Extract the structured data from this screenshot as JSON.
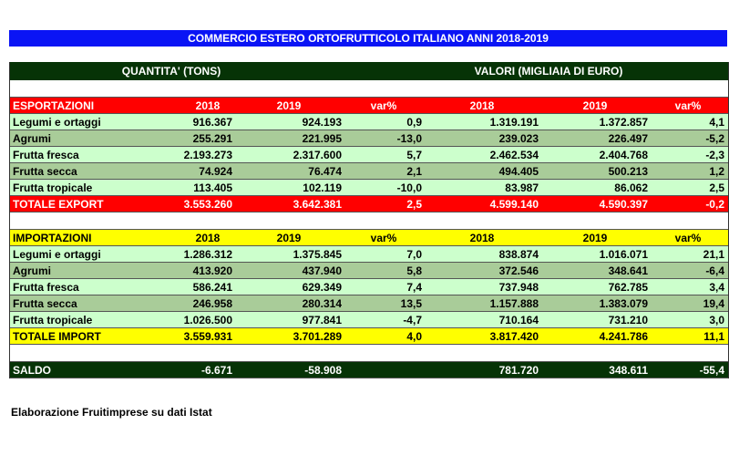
{
  "title": "COMMERCIO ESTERO ORTOFRUTTICOLO ITALIANO ANNI 2018-2019",
  "header": {
    "quantity": "QUANTITA' (TONS)",
    "values": "VALORI (MIGLIAIA DI EURO)"
  },
  "export": {
    "header": [
      "ESPORTAZIONI",
      "2018",
      "2019",
      "var%",
      "2018",
      "2019",
      "var%"
    ],
    "rows": [
      [
        "Legumi e ortaggi",
        "916.367",
        "924.193",
        "0,9",
        "1.319.191",
        "1.372.857",
        "4,1"
      ],
      [
        "Agrumi",
        "255.291",
        "221.995",
        "-13,0",
        "239.023",
        "226.497",
        "-5,2"
      ],
      [
        "Frutta fresca",
        "2.193.273",
        "2.317.600",
        "5,7",
        "2.462.534",
        "2.404.768",
        "-2,3"
      ],
      [
        "Frutta secca",
        "74.924",
        "76.474",
        "2,1",
        "494.405",
        "500.213",
        "1,2"
      ],
      [
        "Frutta tropicale",
        "113.405",
        "102.119",
        "-10,0",
        "83.987",
        "86.062",
        "2,5"
      ]
    ],
    "total": [
      "TOTALE EXPORT",
      "3.553.260",
      "3.642.381",
      "2,5",
      "4.599.140",
      "4.590.397",
      "-0,2"
    ]
  },
  "import": {
    "header": [
      "IMPORTAZIONI",
      "2018",
      "2019",
      "var%",
      "2018",
      "2019",
      "var%"
    ],
    "rows": [
      [
        "Legumi e ortaggi",
        "1.286.312",
        "1.375.845",
        "7,0",
        "838.874",
        "1.016.071",
        "21,1"
      ],
      [
        "Agrumi",
        "413.920",
        "437.940",
        "5,8",
        "372.546",
        "348.641",
        "-6,4"
      ],
      [
        "Frutta fresca",
        "586.241",
        "629.349",
        "7,4",
        "737.948",
        "762.785",
        "3,4"
      ],
      [
        "Frutta secca",
        "246.958",
        "280.314",
        "13,5",
        "1.157.888",
        "1.383.079",
        "19,4"
      ],
      [
        "Frutta tropicale",
        "1.026.500",
        "977.841",
        "-4,7",
        "710.164",
        "731.210",
        "3,0"
      ]
    ],
    "total": [
      "TOTALE IMPORT",
      "3.559.931",
      "3.701.289",
      "4,0",
      "3.817.420",
      "4.241.786",
      "11,1"
    ]
  },
  "saldo": [
    "SALDO",
    "-6.671",
    "-58.908",
    "",
    "781.720",
    "348.611",
    "-55,4"
  ],
  "footer": "Elaborazione Fruitimprese su dati Istat"
}
